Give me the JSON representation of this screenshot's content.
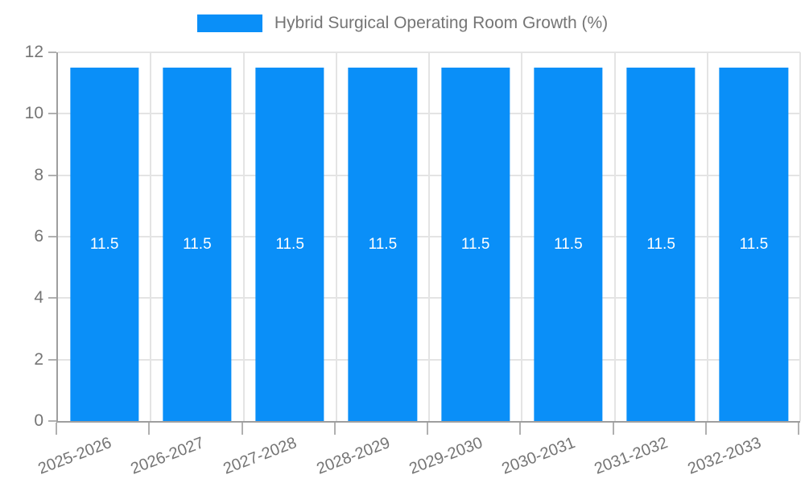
{
  "page": {
    "background": "#ffffff"
  },
  "legend": {
    "label": "Hybrid Surgical Operating Room Growth (%)",
    "position": "top"
  },
  "chart_data": {
    "type": "bar",
    "title": "Hybrid Surgical Operating Room Growth (%)",
    "categories": [
      "2025-2026",
      "2026-2027",
      "2027-2028",
      "2028-2029",
      "2029-2030",
      "2030-2031",
      "2031-2032",
      "2032-2033"
    ],
    "values": [
      11.5,
      11.5,
      11.5,
      11.5,
      11.5,
      11.5,
      11.5,
      11.5
    ],
    "bar_labels": [
      "11.5",
      "11.5",
      "11.5",
      "11.5",
      "11.5",
      "11.5",
      "11.5",
      "11.5"
    ],
    "xlabel": "",
    "ylabel": "",
    "ylim": [
      0,
      12
    ],
    "yticks": [
      0,
      2,
      4,
      6,
      8,
      10,
      12
    ],
    "ytick_labels": [
      "0",
      "2",
      "4",
      "6",
      "8",
      "10",
      "12"
    ],
    "grid": "on",
    "legend_position": "top",
    "x_label_rotation_deg": -21
  },
  "style": {
    "bar_color": "#0a8ff8",
    "bar_label_color": "#ffffff",
    "axis_color": "#9e9e9e",
    "grid_color": "#e4e4e4",
    "tick_mark_color": "#b0b0b0",
    "tick_label_color": "#757575",
    "legend_text_color": "#757575"
  }
}
